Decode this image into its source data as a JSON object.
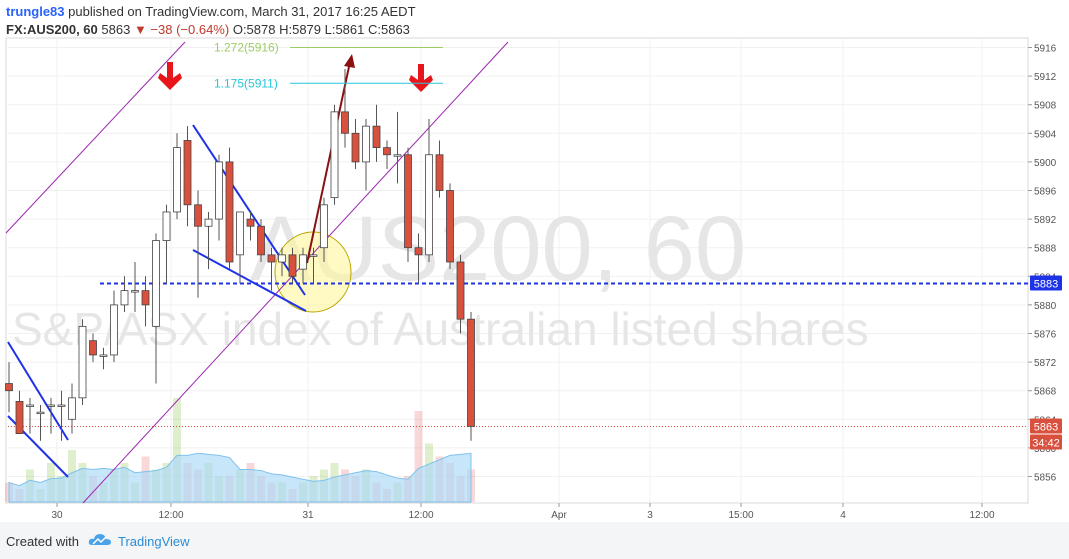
{
  "header": {
    "publisher": "trungle83",
    "published_text": "published on TradingView.com, March 31, 2017 16:25 AEDT",
    "symbol": "FX:AUS200, 60",
    "last": "5863",
    "change": "▼ −38 (−0.64%)",
    "ohlc": "O:5878 H:5879 L:5861 C:5863"
  },
  "watermark": {
    "symbol": "AUS200, 60",
    "description": "S&P/ASX index of Australian listed shares"
  },
  "footer": {
    "created_with": "Created with",
    "brand": "TradingView"
  },
  "colors": {
    "up_candle": "#ffffff",
    "down_candle": "#d9503f",
    "channel": "#9c27b0",
    "trend_lines": "#1e33e6",
    "arrows": "#e8151a",
    "projection_arrow": "#8b1010",
    "support_line": "#1e33e6",
    "fib_1272": "#9ccc65",
    "fib_1175": "#26c6da"
  },
  "chart_data": {
    "type": "candlestick",
    "ylim": [
      5852,
      5918
    ],
    "y_ticks": [
      5856,
      5860,
      5864,
      5868,
      5872,
      5876,
      5880,
      5884,
      5888,
      5892,
      5896,
      5900,
      5904,
      5908,
      5912,
      5916
    ],
    "x_labels": [
      "30",
      "12:00",
      "31",
      "12:00",
      "Apr",
      "3",
      "15:00",
      "4",
      "12:00"
    ],
    "price_badges": {
      "support": "5883",
      "last": "5863",
      "countdown": "34:42"
    },
    "fib_levels": [
      {
        "label": "1.272(5916)",
        "value": 5916
      },
      {
        "label": "1.175(5911)",
        "value": 5911
      }
    ],
    "support_level": 5883,
    "candles": [
      {
        "o": 5869,
        "h": 5872,
        "l": 5865,
        "c": 5868
      },
      {
        "o": 5866.5,
        "h": 5868,
        "l": 5862,
        "c": 5862
      },
      {
        "o": 5866,
        "h": 5867,
        "l": 5862,
        "c": 5866
      },
      {
        "o": 5865,
        "h": 5866,
        "l": 5861,
        "c": 5865
      },
      {
        "o": 5866,
        "h": 5867,
        "l": 5862,
        "c": 5866
      },
      {
        "o": 5866,
        "h": 5868,
        "l": 5861,
        "c": 5866
      },
      {
        "o": 5864,
        "h": 5869,
        "l": 5862,
        "c": 5867
      },
      {
        "o": 5867,
        "h": 5878,
        "l": 5866,
        "c": 5877
      },
      {
        "o": 5875,
        "h": 5876,
        "l": 5872,
        "c": 5873
      },
      {
        "o": 5873,
        "h": 5874,
        "l": 5871,
        "c": 5873
      },
      {
        "o": 5873,
        "h": 5882,
        "l": 5872,
        "c": 5880
      },
      {
        "o": 5880,
        "h": 5884,
        "l": 5879,
        "c": 5882
      },
      {
        "o": 5882,
        "h": 5886,
        "l": 5879,
        "c": 5882
      },
      {
        "o": 5882,
        "h": 5884,
        "l": 5877,
        "c": 5880
      },
      {
        "o": 5877,
        "h": 5890,
        "l": 5869,
        "c": 5889
      },
      {
        "o": 5889,
        "h": 5894,
        "l": 5883,
        "c": 5893
      },
      {
        "o": 5893,
        "h": 5904,
        "l": 5892,
        "c": 5902
      },
      {
        "o": 5903,
        "h": 5905,
        "l": 5891,
        "c": 5894
      },
      {
        "o": 5894,
        "h": 5896,
        "l": 5881,
        "c": 5891
      },
      {
        "o": 5891,
        "h": 5893,
        "l": 5885,
        "c": 5892
      },
      {
        "o": 5892,
        "h": 5901,
        "l": 5889,
        "c": 5900
      },
      {
        "o": 5900,
        "h": 5902,
        "l": 5885,
        "c": 5886
      },
      {
        "o": 5887,
        "h": 5893,
        "l": 5883,
        "c": 5893
      },
      {
        "o": 5892,
        "h": 5893,
        "l": 5889,
        "c": 5891
      },
      {
        "o": 5891,
        "h": 5892,
        "l": 5886,
        "c": 5887
      },
      {
        "o": 5887,
        "h": 5888,
        "l": 5882,
        "c": 5886
      },
      {
        "o": 5886,
        "h": 5888,
        "l": 5884,
        "c": 5887
      },
      {
        "o": 5887,
        "h": 5888,
        "l": 5883,
        "c": 5884
      },
      {
        "o": 5885,
        "h": 5888,
        "l": 5883,
        "c": 5887
      },
      {
        "o": 5887,
        "h": 5888,
        "l": 5883,
        "c": 5887
      },
      {
        "o": 5888,
        "h": 5895,
        "l": 5886,
        "c": 5894
      },
      {
        "o": 5895,
        "h": 5908,
        "l": 5894,
        "c": 5907
      },
      {
        "o": 5907,
        "h": 5913,
        "l": 5902,
        "c": 5904
      },
      {
        "o": 5904,
        "h": 5906,
        "l": 5899,
        "c": 5900
      },
      {
        "o": 5900,
        "h": 5906,
        "l": 5896,
        "c": 5905
      },
      {
        "o": 5905,
        "h": 5908,
        "l": 5900,
        "c": 5902
      },
      {
        "o": 5902,
        "h": 5903,
        "l": 5899,
        "c": 5901
      },
      {
        "o": 5901,
        "h": 5907,
        "l": 5897,
        "c": 5901
      },
      {
        "o": 5901,
        "h": 5902,
        "l": 5886,
        "c": 5888
      },
      {
        "o": 5888,
        "h": 5890,
        "l": 5883,
        "c": 5887
      },
      {
        "o": 5887,
        "h": 5906,
        "l": 5886,
        "c": 5901
      },
      {
        "o": 5901,
        "h": 5903,
        "l": 5895,
        "c": 5896
      },
      {
        "o": 5896,
        "h": 5897,
        "l": 5885,
        "c": 5886
      },
      {
        "o": 5886,
        "h": 5887,
        "l": 5876,
        "c": 5878
      },
      {
        "o": 5878,
        "h": 5879,
        "l": 5861,
        "c": 5863
      }
    ],
    "volume": [
      3,
      2,
      5,
      2,
      6,
      4,
      8,
      6,
      4,
      3,
      5,
      6,
      3,
      7,
      5,
      6,
      16,
      6,
      5,
      6,
      4,
      4,
      5,
      6,
      4,
      3,
      3,
      2,
      3,
      4,
      5,
      6,
      5,
      4,
      5,
      3,
      2,
      3,
      4,
      14,
      9,
      7,
      6,
      4,
      5
    ]
  }
}
